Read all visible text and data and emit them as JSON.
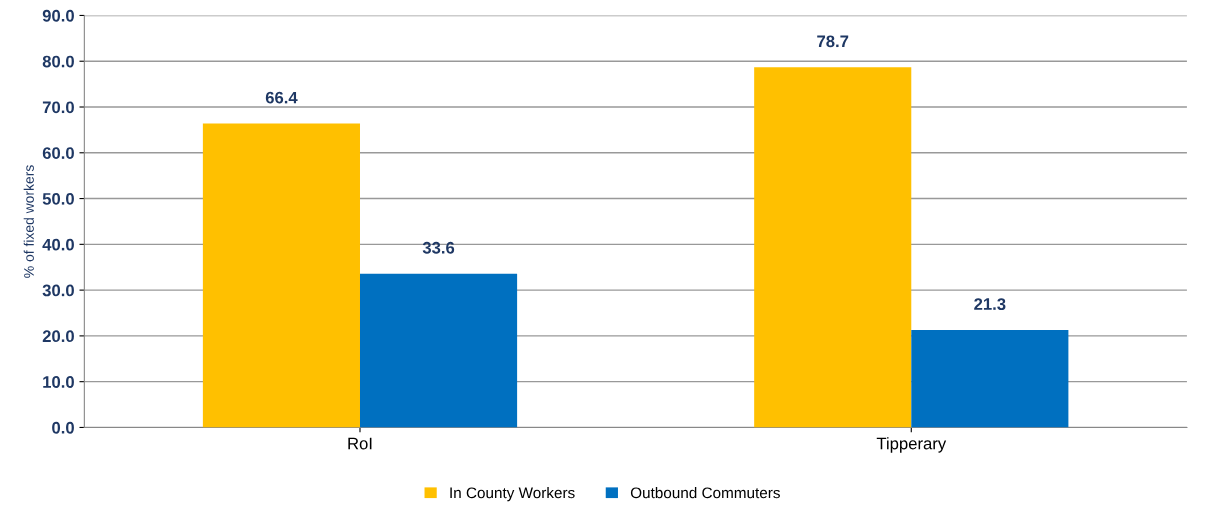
{
  "chart_data": {
    "type": "bar",
    "ylabel": "% of fixed workers",
    "categories": [
      "RoI",
      "Tipperary"
    ],
    "series": [
      {
        "name": "In County Workers",
        "color": "#ffc000",
        "values": [
          66.4,
          78.7
        ]
      },
      {
        "name": "Outbound Commuters",
        "color": "#0070c0",
        "values": [
          33.6,
          21.3
        ]
      }
    ],
    "ylim": [
      0,
      90
    ],
    "yticks": [
      {
        "value": 0,
        "label": "0.0"
      },
      {
        "value": 10,
        "label": "10.0"
      },
      {
        "value": 20,
        "label": "20.0"
      },
      {
        "value": 30,
        "label": "30.0"
      },
      {
        "value": 40,
        "label": "40.0"
      },
      {
        "value": 50,
        "label": "50.0"
      },
      {
        "value": 60,
        "label": "60.0"
      },
      {
        "value": 70,
        "label": "70.0"
      },
      {
        "value": 80,
        "label": "80.0"
      },
      {
        "value": 90,
        "label": "90.0"
      }
    ],
    "grid": "y",
    "legend": "bottom",
    "data_labels": true
  }
}
